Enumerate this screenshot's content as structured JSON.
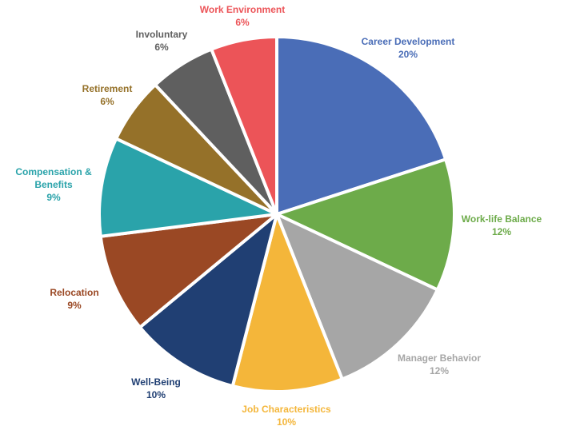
{
  "chart_data": {
    "type": "pie",
    "title": "",
    "legend": "none",
    "slices": [
      {
        "label": "Career Development",
        "label_lines": [
          "Career Development"
        ],
        "value": 20,
        "display": "20%",
        "color": "#4A6DB7"
      },
      {
        "label": "Work-life Balance",
        "label_lines": [
          "Work-life Balance"
        ],
        "value": 12,
        "display": "12%",
        "color": "#6DAB4A"
      },
      {
        "label": "Manager Behavior",
        "label_lines": [
          "Manager Behavior"
        ],
        "value": 12,
        "display": "12%",
        "color": "#A6A6A6"
      },
      {
        "label": "Job Characteristics",
        "label_lines": [
          "Job Characteristics"
        ],
        "value": 10,
        "display": "10%",
        "color": "#F4B63A"
      },
      {
        "label": "Well-Being",
        "label_lines": [
          "Well-Being"
        ],
        "value": 10,
        "display": "10%",
        "color": "#203F73"
      },
      {
        "label": "Relocation",
        "label_lines": [
          "Relocation"
        ],
        "value": 9,
        "display": "9%",
        "color": "#9A4824"
      },
      {
        "label": "Compensation & Benefits",
        "label_lines": [
          "Compensation &",
          "Benefits"
        ],
        "value": 9,
        "display": "9%",
        "color": "#2AA3AA"
      },
      {
        "label": "Retirement",
        "label_lines": [
          "Retirement"
        ],
        "value": 6,
        "display": "6%",
        "color": "#957129"
      },
      {
        "label": "Involuntary",
        "label_lines": [
          "Involuntary"
        ],
        "value": 6,
        "display": "6%",
        "color": "#5F5F5F"
      },
      {
        "label": "Work Environment",
        "label_lines": [
          "Work Environment"
        ],
        "value": 6,
        "display": "6%",
        "color": "#EC5458"
      }
    ]
  }
}
